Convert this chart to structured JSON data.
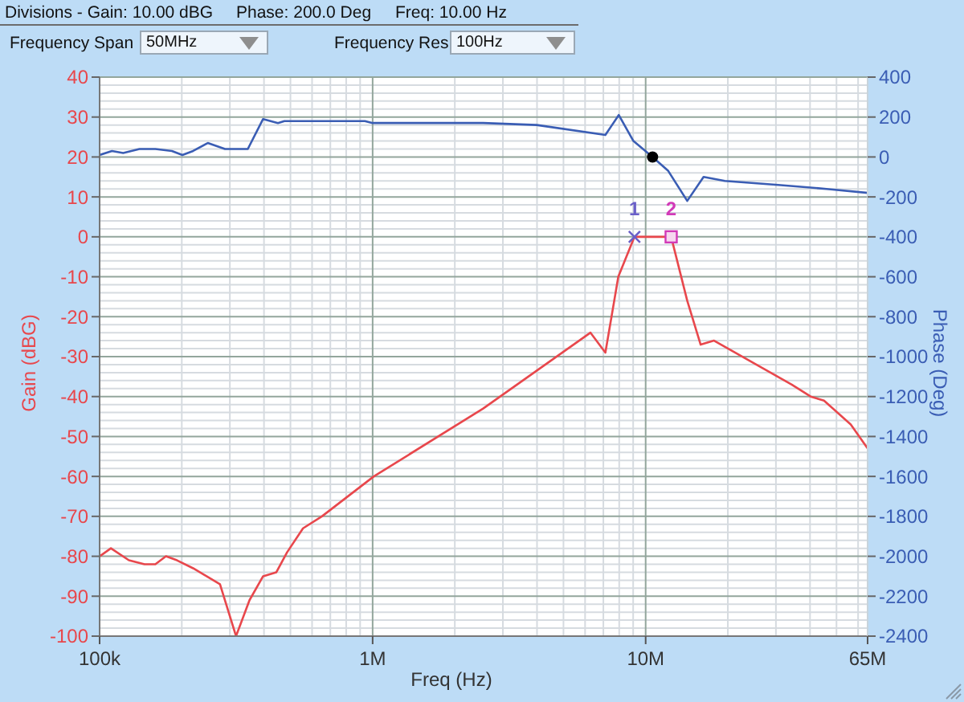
{
  "chart_data": {
    "type": "line",
    "log": "x",
    "grid": true,
    "marker": "none",
    "xlabel": "Freq (Hz)",
    "ylabel": "Gain (dBG)",
    "y2label": "Phase (Deg)",
    "annotations": [
      "Divisions - Gain: 10.00 dBG",
      "Phase: 200.0 Deg",
      "Freq: 10.00 Hz",
      "Frequency Span",
      "50MHz",
      "Frequency Res",
      "100Hz",
      {
        "text": "1",
        "x": 9100000,
        "y": 0
      },
      {
        "text": "2",
        "x": 12400000,
        "y": 0
      }
    ],
    "xlim": [
      100000,
      65000000
    ],
    "xticks": [
      {
        "value": 100000,
        "label": "100k"
      },
      {
        "value": 200000,
        "label": null
      },
      {
        "value": 300000,
        "label": null
      },
      {
        "value": 400000,
        "label": null
      },
      {
        "value": 500000,
        "label": null
      },
      {
        "value": 600000,
        "label": null
      },
      {
        "value": 700000,
        "label": null
      },
      {
        "value": 800000,
        "label": null
      },
      {
        "value": 900000,
        "label": null
      },
      {
        "value": 1000000,
        "label": "1M"
      },
      {
        "value": 2000000,
        "label": null
      },
      {
        "value": 3000000,
        "label": null
      },
      {
        "value": 4000000,
        "label": null
      },
      {
        "value": 5000000,
        "label": null
      },
      {
        "value": 6000000,
        "label": null
      },
      {
        "value": 7000000,
        "label": null
      },
      {
        "value": 8000000,
        "label": null
      },
      {
        "value": 9000000,
        "label": null
      },
      {
        "value": 10000000,
        "label": "10M"
      },
      {
        "value": 20000000,
        "label": null
      },
      {
        "value": 30000000,
        "label": null
      },
      {
        "value": 40000000,
        "label": null
      },
      {
        "value": 50000000,
        "label": null
      },
      {
        "value": 60000000,
        "label": null
      },
      {
        "value": 65000000,
        "label": "65M"
      }
    ],
    "ylim": [
      -100,
      40
    ],
    "yticks": [
      -100,
      {
        "value": -98,
        "label": null
      },
      {
        "value": -96,
        "label": null
      },
      {
        "value": -94,
        "label": null
      },
      {
        "value": -92,
        "label": null
      },
      -90,
      {
        "value": -88,
        "label": null
      },
      {
        "value": -86,
        "label": null
      },
      {
        "value": -84,
        "label": null
      },
      {
        "value": -82,
        "label": null
      },
      -80,
      {
        "value": -78,
        "label": null
      },
      {
        "value": -76,
        "label": null
      },
      {
        "value": -74,
        "label": null
      },
      {
        "value": -72,
        "label": null
      },
      -70,
      {
        "value": -68,
        "label": null
      },
      {
        "value": -66,
        "label": null
      },
      {
        "value": -64,
        "label": null
      },
      {
        "value": -62,
        "label": null
      },
      -60,
      {
        "value": -58,
        "label": null
      },
      {
        "value": -56,
        "label": null
      },
      {
        "value": -54,
        "label": null
      },
      {
        "value": -52,
        "label": null
      },
      -50,
      {
        "value": -48,
        "label": null
      },
      {
        "value": -46,
        "label": null
      },
      {
        "value": -44,
        "label": null
      },
      {
        "value": -42,
        "label": null
      },
      -40,
      {
        "value": -38,
        "label": null
      },
      {
        "value": -36,
        "label": null
      },
      {
        "value": -34,
        "label": null
      },
      {
        "value": -32,
        "label": null
      },
      -30,
      {
        "value": -28,
        "label": null
      },
      {
        "value": -26,
        "label": null
      },
      {
        "value": -24,
        "label": null
      },
      {
        "value": -22,
        "label": null
      },
      -20,
      {
        "value": -18,
        "label": null
      },
      {
        "value": -16,
        "label": null
      },
      {
        "value": -14,
        "label": null
      },
      {
        "value": -12,
        "label": null
      },
      -10,
      {
        "value": -8,
        "label": null
      },
      {
        "value": -6,
        "label": null
      },
      {
        "value": -4,
        "label": null
      },
      {
        "value": -2,
        "label": null
      },
      0,
      {
        "value": 2,
        "label": null
      },
      {
        "value": 4,
        "label": null
      },
      {
        "value": 6,
        "label": null
      },
      {
        "value": 8,
        "label": null
      },
      10,
      {
        "value": 12,
        "label": null
      },
      {
        "value": 14,
        "label": null
      },
      {
        "value": 16,
        "label": null
      },
      {
        "value": 18,
        "label": null
      },
      20,
      {
        "value": 22,
        "label": null
      },
      {
        "value": 24,
        "label": null
      },
      {
        "value": 26,
        "label": null
      },
      {
        "value": 28,
        "label": null
      },
      30,
      {
        "value": 32,
        "label": null
      },
      {
        "value": 34,
        "label": null
      },
      {
        "value": 36,
        "label": null
      },
      {
        "value": 38,
        "label": null
      },
      40
    ],
    "y2lim": [
      -2400,
      400
    ],
    "y2ticks": [
      -2400,
      -2200,
      -2000,
      -1800,
      -1600,
      -1400,
      -1200,
      -1000,
      -800,
      -600,
      -400,
      -200,
      0,
      200,
      400
    ],
    "series": [
      {
        "color": "#e8474c",
        "x": [
          100000,
          110000,
          128000,
          146000,
          160000,
          175000,
          192000,
          220000,
          276000,
          316000,
          354000,
          397000,
          444000,
          486000,
          556000,
          652000,
          1010000,
          2540000,
          6280000,
          7120000,
          7940000,
          9100000,
          12400000,
          14200000,
          15900000,
          17800000,
          34300000,
          40200000,
          45000000,
          56400000,
          65000000
        ],
        "values": [
          -80,
          -78,
          -81,
          -82,
          -82,
          -80,
          -81,
          -83,
          -87,
          -100,
          -91,
          -85,
          -84,
          -79,
          -73,
          -70,
          -60,
          -43,
          -24,
          -29,
          -10,
          0,
          0,
          -16,
          -27,
          -26,
          -37,
          -40,
          -41,
          -47,
          -53
        ]
      },
      {
        "axis": "y2",
        "color": "#3a5db4",
        "x": [
          100000,
          111000,
          122000,
          140000,
          160000,
          184000,
          201000,
          220000,
          249000,
          288000,
          349000,
          397000,
          450000,
          475000,
          937000,
          1000000,
          2540000,
          3990000,
          7120000,
          7970000,
          9020000,
          10600000,
          12100000,
          14200000,
          16300000,
          19500000,
          30600000,
          46000000,
          65000000
        ],
        "values": [
          10,
          30,
          20,
          40,
          40,
          30,
          10,
          30,
          70,
          40,
          40,
          190,
          170,
          180,
          180,
          170,
          170,
          160,
          110,
          210,
          80,
          0,
          -70,
          -220,
          -100,
          -120,
          -140,
          -160,
          -180
        ]
      },
      {
        "type": "scatter",
        "marker": "cross",
        "color": "#6a5fc8",
        "x": [
          9100000
        ],
        "values": [
          0
        ]
      },
      {
        "type": "scatter",
        "marker": "square",
        "color": "#d23ab8",
        "x": [
          12400000
        ],
        "values": [
          0
        ]
      },
      {
        "type": "scatter",
        "marker": "circle",
        "axis": "y2",
        "color": "#000000",
        "x": [
          10600000
        ],
        "values": [
          0
        ]
      }
    ]
  }
}
